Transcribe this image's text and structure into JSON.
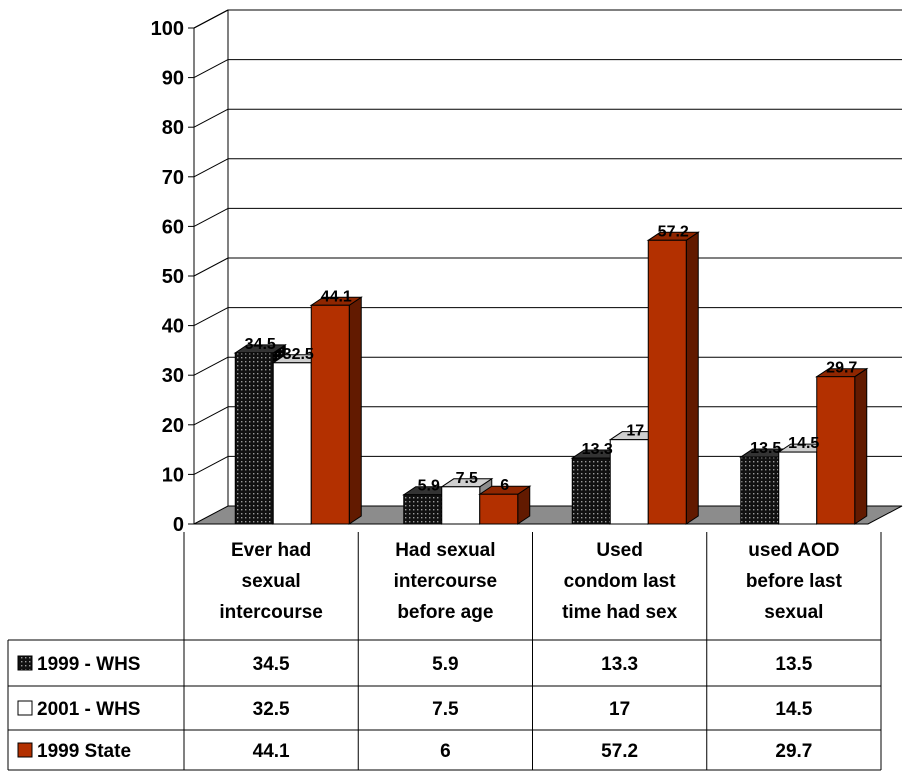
{
  "chart_data": {
    "type": "bar",
    "categories": [
      "Ever had sexual intercourse",
      "Had sexual intercourse before age",
      "Used condom last time had sex",
      "used AOD before last sexual"
    ],
    "category_lines": [
      [
        "Ever had",
        "sexual",
        "intercourse"
      ],
      [
        "Had sexual",
        "intercourse",
        "before age"
      ],
      [
        "Used",
        "condom last",
        "time had sex"
      ],
      [
        "used AOD",
        "before last",
        "sexual"
      ]
    ],
    "series": [
      {
        "name": "1999 - WHS",
        "values": [
          34.5,
          5.9,
          13.3,
          13.5
        ],
        "color": "#1a1a1a",
        "pattern": "dots"
      },
      {
        "name": "2001 - WHS",
        "values": [
          32.5,
          7.5,
          17,
          14.5
        ],
        "color": "#ffffff",
        "pattern": "none"
      },
      {
        "name": "1999 State",
        "values": [
          44.1,
          6,
          57.2,
          29.7
        ],
        "color": "#b33000",
        "pattern": "none"
      }
    ],
    "table_values": [
      [
        "34.5",
        "5.9",
        "13.3",
        "13.5"
      ],
      [
        "32.5",
        "7.5",
        "17",
        "14.5"
      ],
      [
        "44.1",
        "6",
        "57.2",
        "29.7"
      ]
    ],
    "data_labels": [
      [
        "34.5",
        "5.9",
        "13.3",
        "13.5"
      ],
      [
        "32.5",
        "7.5",
        "17",
        "14.5"
      ],
      [
        "44.1",
        "6",
        "57.2",
        "29.7"
      ]
    ],
    "yticks": [
      "0",
      "10",
      "20",
      "30",
      "40",
      "50",
      "60",
      "70",
      "80",
      "90",
      "100"
    ],
    "ylim": [
      0,
      100
    ],
    "grid": true,
    "legend": "data-table",
    "title": "",
    "xlabel": "",
    "ylabel": ""
  }
}
